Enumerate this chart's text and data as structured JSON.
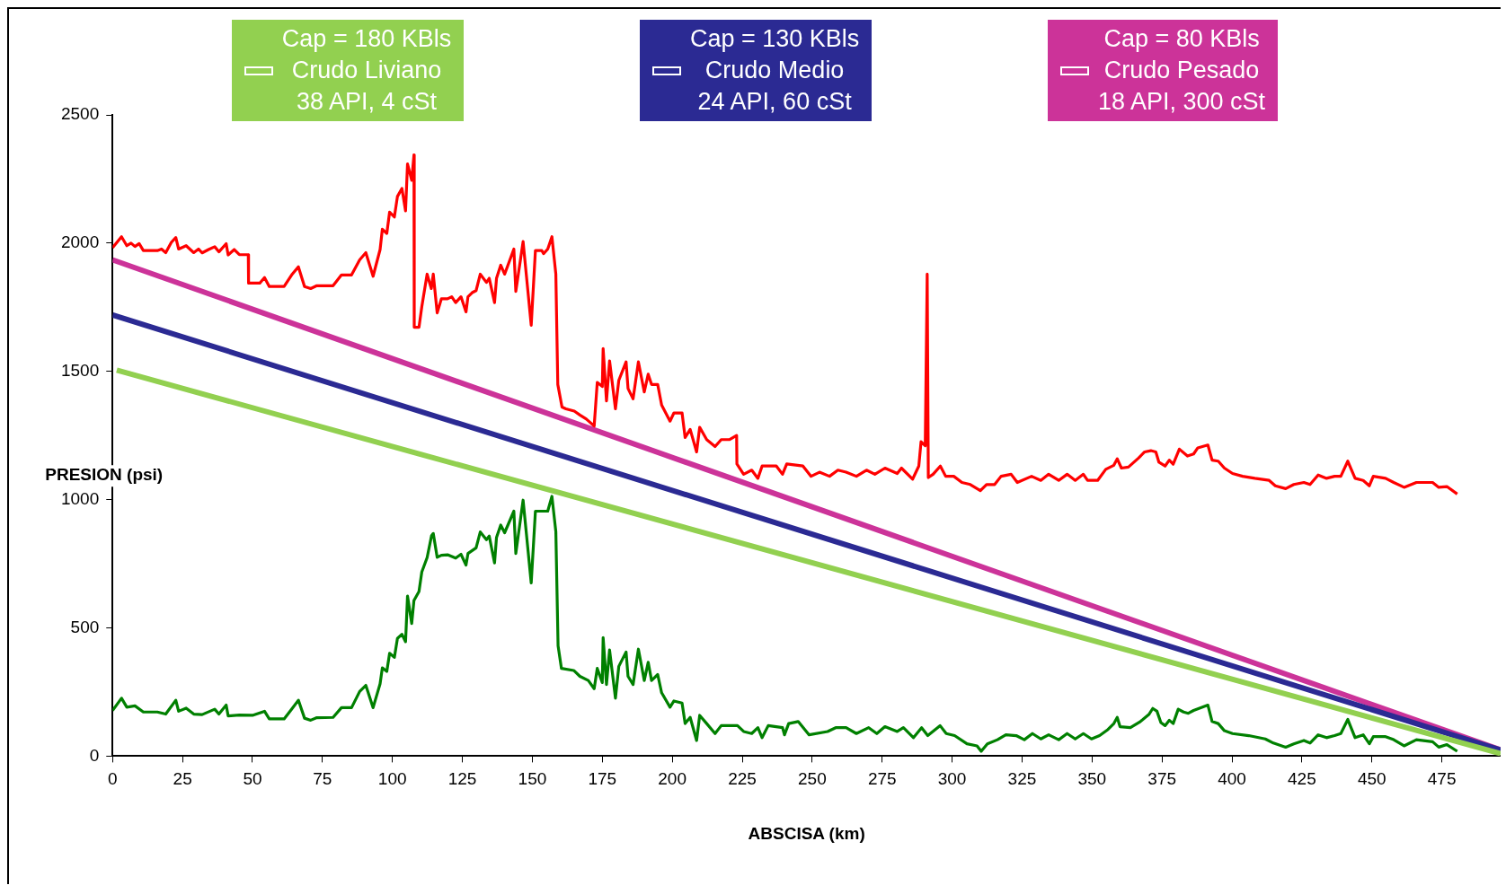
{
  "chart_data": {
    "type": "line",
    "xlabel": "ABSCISA (km)",
    "ylabel": "PRESION (psi)",
    "xlim": [
      0,
      496
    ],
    "ylim": [
      0,
      2500
    ],
    "xticks": [
      0,
      25,
      50,
      75,
      100,
      125,
      150,
      175,
      200,
      225,
      250,
      275,
      300,
      325,
      350,
      375,
      400,
      425,
      450,
      475
    ],
    "yticks": [
      0,
      500,
      1000,
      1500,
      2000,
      2500
    ],
    "legend": "top",
    "marker": "none",
    "line_style": "solid",
    "series": [
      {
        "color": "#ff0000",
        "x": [
          0,
          3.2,
          5.1,
          6.6,
          8,
          9.5,
          11,
          16,
          17.5,
          19,
          21,
          22.6,
          23.6,
          26.3,
          29,
          30.7,
          32,
          34.3,
          36.5,
          38,
          40.6,
          41.3,
          43.5,
          45.3,
          48.5,
          48.6,
          52.6,
          54.3,
          56,
          61.3,
          64.2,
          66.4,
          68.6,
          70.8,
          73,
          78.8,
          81.8,
          85.4,
          88.3,
          90.5,
          93.1,
          95.6,
          96.4,
          98,
          99,
          100.7,
          101.8,
          103.4,
          104.7,
          105.4,
          106.9,
          107.7,
          107.8,
          109.5,
          110.5,
          112.4,
          113.9,
          114.6,
          116,
          117.5,
          119.7,
          121.2,
          122.6,
          124.5,
          126.3,
          127,
          128.5,
          129.9,
          131.4,
          133.6,
          134.6,
          136.5,
          137.2,
          138.7,
          140.1,
          143.4,
          144.1,
          146.7,
          149.6,
          151.1,
          153.4,
          154,
          155.5,
          157,
          158.4,
          159.1,
          160.6,
          162,
          165,
          167,
          169.3,
          172.1,
          173.2,
          175,
          175.3,
          176.5,
          177.6,
          179.7,
          180.9,
          183.5,
          184.2,
          186,
          187.9,
          190,
          191.4,
          192.6,
          194.8,
          196.2,
          199.2,
          200.6,
          203.5,
          204.6,
          206.4,
          208.7,
          209.8,
          212.3,
          215.3,
          217.5,
          220.4,
          223,
          223.1,
          225.5,
          228.4,
          230.6,
          232.1,
          237.2,
          239.4,
          240.9,
          246.7,
          249.6,
          252.6,
          256.2,
          259.2,
          262.1,
          265.8,
          269.4,
          272.4,
          276,
          280.4,
          281.9,
          285.9,
          288.1,
          288.9,
          290.4,
          291.1,
          291.5,
          293.2,
          295.8,
          297.7,
          300.6,
          303.5,
          306.5,
          310.1,
          312.3,
          315.2,
          317.5,
          321.1,
          323.3,
          328.4,
          331.7,
          334.5,
          338.1,
          341.1,
          344,
          346.9,
          348.4,
          352,
          354.9,
          357.8,
          359,
          360.5,
          363,
          366.6,
          368.8,
          371,
          372.8,
          373.9,
          376.1,
          377.6,
          379,
          381.2,
          384.1,
          386.3,
          387.8,
          391.4,
          392.9,
          395.1,
          397.3,
          400.2,
          403.8,
          408.2,
          413.3,
          415.5,
          419.2,
          422.1,
          425.7,
          427.9,
          430.8,
          433.8,
          436.7,
          438.9,
          441.4,
          444,
          446.9,
          449.1,
          450.5,
          454.9,
          457.8,
          461.5,
          465.9,
          471.7,
          473.9,
          476.8,
          480.5
        ],
        "values": [
          1982,
          2025,
          1990,
          2000,
          1987,
          1998,
          1971,
          1971,
          1977,
          1963,
          2003,
          2022,
          1977,
          1990,
          1963,
          1977,
          1962,
          1975,
          1986,
          1966,
          1998,
          1954,
          1975,
          1955,
          1955,
          1844,
          1844,
          1866,
          1831,
          1831,
          1879,
          1908,
          1831,
          1823,
          1834,
          1834,
          1876,
          1876,
          1935,
          1963,
          1871,
          1975,
          2054,
          2038,
          2121,
          2102,
          2182,
          2213,
          2126,
          2309,
          2245,
          2344,
          1672,
          1672,
          1752,
          1879,
          1823,
          1879,
          1728,
          1783,
          1783,
          1791,
          1768,
          1791,
          1732,
          1791,
          1807,
          1815,
          1879,
          1847,
          1863,
          1768,
          1863,
          1914,
          1879,
          1977,
          1812,
          2006,
          1680,
          1971,
          1971,
          1959,
          1977,
          2025,
          1879,
          1449,
          1361,
          1354,
          1345,
          1330,
          1314,
          1287,
          1457,
          1441,
          1589,
          1385,
          1541,
          1354,
          1465,
          1537,
          1433,
          1393,
          1537,
          1420,
          1489,
          1449,
          1449,
          1369,
          1306,
          1338,
          1338,
          1242,
          1274,
          1186,
          1282,
          1234,
          1207,
          1234,
          1234,
          1250,
          1139,
          1099,
          1115,
          1083,
          1131,
          1131,
          1099,
          1139,
          1131,
          1091,
          1107,
          1091,
          1115,
          1107,
          1091,
          1115,
          1099,
          1123,
          1102,
          1123,
          1080,
          1131,
          1226,
          1210,
          1879,
          1086,
          1099,
          1131,
          1091,
          1091,
          1067,
          1059,
          1035,
          1059,
          1059,
          1091,
          1099,
          1067,
          1091,
          1075,
          1099,
          1075,
          1099,
          1075,
          1099,
          1075,
          1075,
          1118,
          1134,
          1159,
          1123,
          1127,
          1162,
          1186,
          1191,
          1186,
          1146,
          1131,
          1154,
          1138,
          1197,
          1170,
          1178,
          1202,
          1213,
          1154,
          1150,
          1123,
          1102,
          1091,
          1083,
          1075,
          1054,
          1043,
          1059,
          1067,
          1059,
          1096,
          1083,
          1091,
          1091,
          1150,
          1083,
          1075,
          1054,
          1091,
          1083,
          1067,
          1048,
          1067,
          1067,
          1048,
          1051,
          1022
        ]
      },
      {
        "color": "#008000",
        "x": [
          0,
          3.2,
          5.1,
          8,
          11,
          16,
          19,
          22.6,
          23.6,
          26.3,
          29,
          32,
          36.5,
          38,
          40.6,
          41.3,
          45.3,
          50,
          54.3,
          56,
          61.3,
          64.2,
          66.4,
          68.6,
          70.8,
          73,
          78.8,
          81.8,
          85.4,
          88.3,
          90.5,
          93.1,
          95.6,
          96.4,
          98,
          99,
          100.7,
          101.8,
          103.4,
          104.7,
          105.4,
          106.9,
          107.7,
          109.5,
          110.5,
          112.4,
          114,
          114.6,
          116,
          117.5,
          119.7,
          122.6,
          124.5,
          126.3,
          127,
          129.9,
          131.4,
          133.6,
          134.6,
          136.5,
          137.2,
          138.7,
          140.1,
          143.4,
          144.1,
          146.7,
          149.6,
          151.1,
          154,
          155.5,
          157,
          158.4,
          159.2,
          160.4,
          164.8,
          167,
          170,
          172.1,
          173.2,
          175,
          175.3,
          176.5,
          177.6,
          179.7,
          180.9,
          183.5,
          184.2,
          186,
          187.9,
          190,
          191.4,
          192.6,
          194.8,
          196.2,
          199.2,
          200.6,
          203.5,
          204.6,
          206.4,
          208.7,
          209.8,
          212.3,
          215.3,
          217.5,
          223.3,
          225.5,
          228.4,
          230.6,
          232.1,
          234.3,
          239.4,
          240.1,
          241.6,
          245,
          248.9,
          255.5,
          258.4,
          262.1,
          265.8,
          270.2,
          273.1,
          276,
          280.4,
          282.6,
          286.2,
          289.1,
          291.3,
          295.7,
          297.9,
          300.9,
          305.3,
          308.9,
          310.4,
          312.6,
          316.2,
          319.2,
          322.9,
          325.8,
          328.7,
          331.7,
          334.5,
          338.1,
          341.1,
          344,
          346.9,
          349.8,
          352.7,
          355.7,
          357.8,
          359,
          360,
          363.7,
          367.3,
          370.3,
          371.7,
          373.2,
          374.6,
          376.1,
          377.6,
          379,
          380.8,
          382.7,
          384.4,
          386.3,
          391.4,
          392.9,
          395.1,
          397.3,
          400.2,
          406,
          411.9,
          414.8,
          419.2,
          422.1,
          425.7,
          427.9,
          430.8,
          433.8,
          436.7,
          438.9,
          441.4,
          444,
          446.9,
          449.1,
          450.5,
          454.9,
          457.8,
          461.5,
          465.9,
          471.7,
          473.9,
          476.8,
          480.5
        ],
        "values": [
          178,
          226,
          191,
          196,
          172,
          172,
          164,
          218,
          175,
          187,
          164,
          162,
          183,
          164,
          199,
          157,
          160,
          159,
          175,
          145,
          145,
          186,
          218,
          148,
          140,
          150,
          151,
          189,
          189,
          252,
          276,
          189,
          282,
          344,
          330,
          401,
          385,
          459,
          475,
          446,
          624,
          517,
          607,
          642,
          718,
          774,
          860,
          868,
          775,
          783,
          785,
          772,
          787,
          745,
          790,
          812,
          874,
          844,
          858,
          753,
          853,
          901,
          871,
          955,
          790,
          998,
          675,
          955,
          955,
          955,
          1013,
          875,
          430,
          342,
          334,
          311,
          295,
          263,
          342,
          287,
          462,
          279,
          414,
          226,
          350,
          406,
          311,
          279,
          417,
          295,
          366,
          295,
          318,
          247,
          191,
          215,
          207,
          127,
          151,
          61,
          159,
          127,
          88,
          119,
          119,
          96,
          88,
          111,
          72,
          119,
          111,
          83,
          127,
          135,
          83,
          96,
          111,
          111,
          88,
          111,
          88,
          115,
          96,
          111,
          72,
          111,
          80,
          119,
          88,
          80,
          48,
          40,
          19,
          48,
          64,
          83,
          80,
          64,
          88,
          67,
          83,
          64,
          88,
          67,
          88,
          67,
          80,
          104,
          127,
          151,
          115,
          111,
          135,
          162,
          186,
          175,
          131,
          119,
          140,
          127,
          183,
          172,
          167,
          178,
          199,
          135,
          127,
          99,
          88,
          80,
          67,
          51,
          35,
          48,
          61,
          51,
          83,
          72,
          80,
          88,
          143,
          72,
          83,
          48,
          76,
          76,
          64,
          40,
          64,
          56,
          35,
          45,
          19
        ]
      },
      {
        "name": "Cap  = 180 KBls\nCrudo Liviano\n38 API, 4 cSt",
        "color": "#92d050",
        "x": [
          1.5,
          496
        ],
        "values": [
          1505,
          10
        ]
      },
      {
        "name": "Cap  = 130 KBls\nCrudo Medio\n24 API, 60 cSt",
        "color": "#2b2a93",
        "x": [
          0,
          496
        ],
        "values": [
          1720,
          24
        ]
      },
      {
        "name": "Cap  = 80 KBls\nCrudo Pesado\n18 API, 300 cSt",
        "color": "#cc3399",
        "x": [
          0,
          496
        ],
        "values": [
          1935,
          24
        ]
      }
    ]
  }
}
